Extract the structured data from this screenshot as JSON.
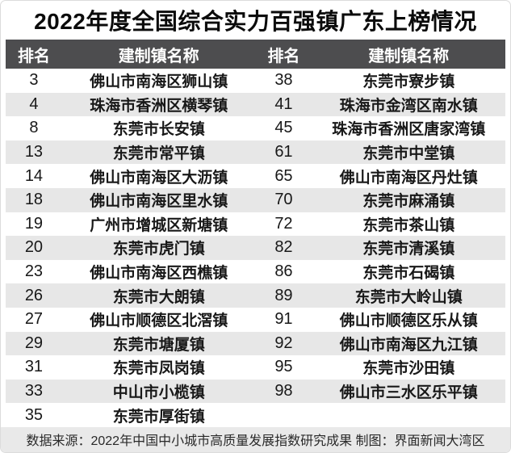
{
  "title": "2022年度全国综合实力百强镇广东上榜情况",
  "chart_data": {
    "type": "table",
    "title": "2022年度全国综合实力百强镇广东上榜情况",
    "columns": [
      "排名",
      "建制镇名称",
      "排名",
      "建制镇名称"
    ],
    "rows": [
      [
        "3",
        "佛山市南海区狮山镇",
        "38",
        "东莞市寮步镇"
      ],
      [
        "4",
        "珠海市香洲区横琴镇",
        "41",
        "珠海市金湾区南水镇"
      ],
      [
        "8",
        "东莞市长安镇",
        "45",
        "珠海市香洲区唐家湾镇"
      ],
      [
        "13",
        "东莞市常平镇",
        "61",
        "东莞市中堂镇"
      ],
      [
        "14",
        "佛山市南海区大沥镇",
        "65",
        "佛山市南海区丹灶镇"
      ],
      [
        "18",
        "佛山市南海区里水镇",
        "70",
        "东莞市麻涌镇"
      ],
      [
        "19",
        "广州市增城区新塘镇",
        "72",
        "东莞市茶山镇"
      ],
      [
        "20",
        "东莞市虎门镇",
        "82",
        "东莞市清溪镇"
      ],
      [
        "23",
        "佛山市南海区西樵镇",
        "86",
        "东莞市石碣镇"
      ],
      [
        "26",
        "东莞市大朗镇",
        "89",
        "东莞市大岭山镇"
      ],
      [
        "27",
        "佛山市顺德区北滘镇",
        "91",
        "佛山市顺德区乐从镇"
      ],
      [
        "29",
        "东莞市塘厦镇",
        "92",
        "佛山市南海区九江镇"
      ],
      [
        "31",
        "东莞市凤岗镇",
        "95",
        "东莞市沙田镇"
      ],
      [
        "33",
        "中山市小榄镇",
        "98",
        "佛山市三水区乐平镇"
      ],
      [
        "35",
        "东莞市厚街镇",
        "",
        ""
      ]
    ]
  },
  "footer": {
    "source_text": "数据来源：2022年中国中小城市高质量发展指数研究成果 制图：界面新闻大湾区"
  },
  "colors": {
    "header_bg": "#4d4d4f",
    "header_text": "#ffffff",
    "row_alt_bg": "#e7e7e7",
    "footer_bg": "#e9e9e9",
    "title_text": "#0b0b0b",
    "body_text": "#181818"
  }
}
